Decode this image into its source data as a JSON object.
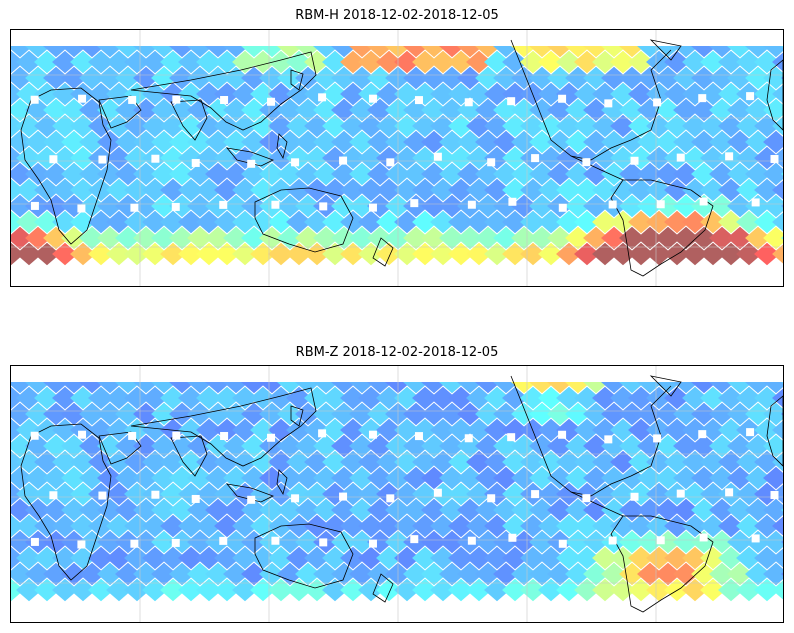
{
  "figure": {
    "panels": [
      {
        "id": "rbm-h",
        "title": "RBM-H 2018-12-02-2018-12-05"
      },
      {
        "id": "rbm-z",
        "title": "RBM-Z 2018-12-02-2018-12-05"
      }
    ]
  },
  "chart_data": [
    {
      "type": "heatmap",
      "title": "RBM-H 2018-12-02-2018-12-05",
      "projection": "equirectangular",
      "central_longitude": 160,
      "latitude_range": [
        -60,
        90
      ],
      "colormap": "jet (semi-transparent)",
      "grid": true,
      "coastlines": true,
      "description_of_field": "mostly low (blue) over tropics and mid-latitudes; high (orange/red) bands in far south Atlantic/Indian ocean and over South Atlantic Anomaly region east of South America; moderate yellow/red patches near northern Pacific polar edge"
    },
    {
      "type": "heatmap",
      "title": "RBM-Z 2018-12-02-2018-12-05",
      "projection": "equirectangular",
      "central_longitude": 160,
      "latitude_range": [
        -60,
        90
      ],
      "colormap": "jet (semi-transparent)",
      "grid": true,
      "coastlines": true,
      "description_of_field": "mostly low (blue) values; elevated yellow/orange region over South Atlantic Anomaly east of South America; weaker edge enhancement at polar latitudes"
    }
  ]
}
